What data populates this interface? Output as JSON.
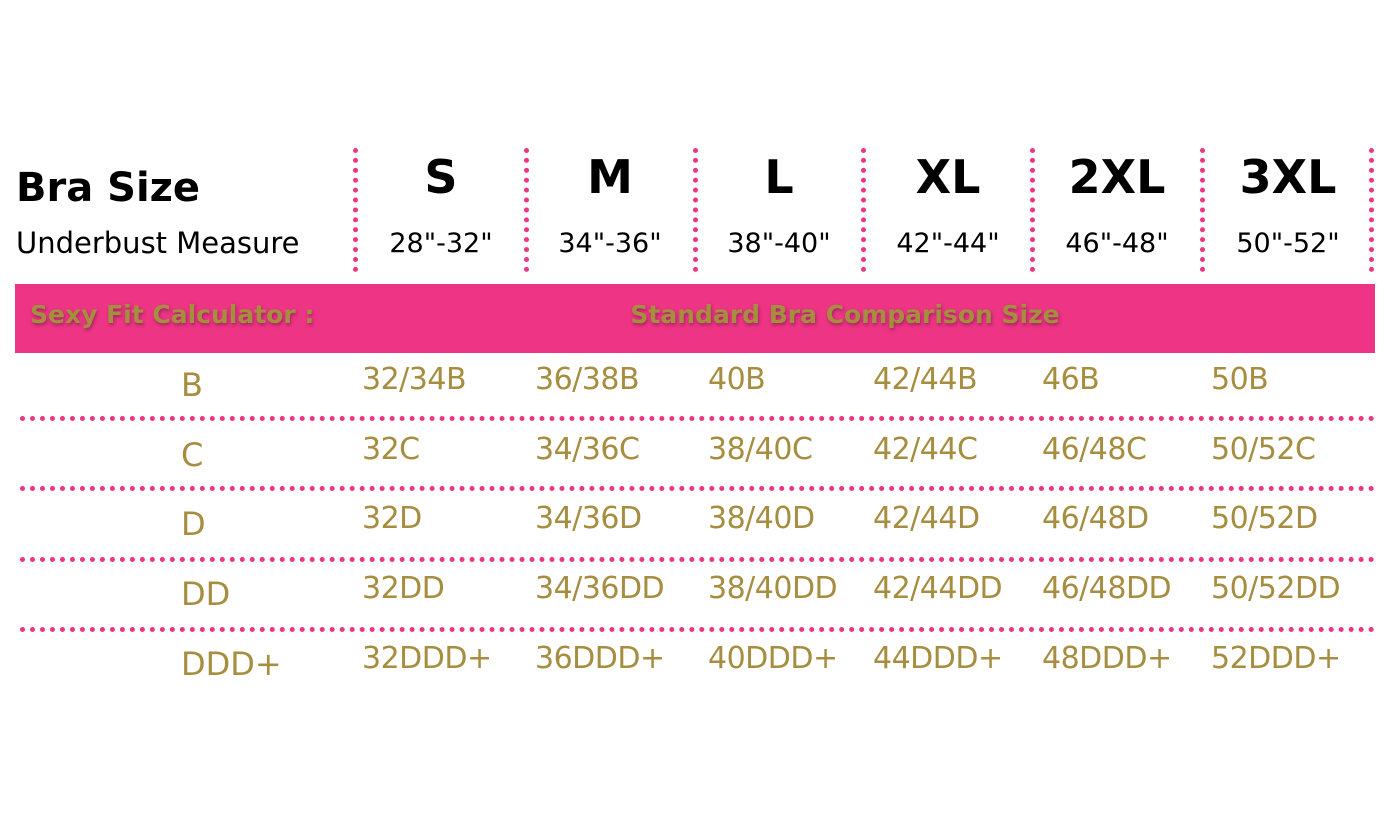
{
  "header": {
    "title": "Bra Size",
    "subtitle": "Underbust Measure"
  },
  "sizes": [
    {
      "label": "S",
      "measure": "28\"-32\""
    },
    {
      "label": "M",
      "measure": "34\"-36\""
    },
    {
      "label": "L",
      "measure": "38\"-40\""
    },
    {
      "label": "XL",
      "measure": "42\"-44\""
    },
    {
      "label": "2XL",
      "measure": "46\"-48\""
    },
    {
      "label": "3XL",
      "measure": "50\"-52\""
    }
  ],
  "banner": {
    "left": "Sexy Fit Calculator :",
    "right": "Standard Bra Comparison Size"
  },
  "rows": [
    {
      "cup": "B",
      "values": [
        "32/34B",
        "36/38B",
        "40B",
        "42/44B",
        "46B",
        "50B"
      ]
    },
    {
      "cup": "C",
      "values": [
        "32C",
        "34/36C",
        "38/40C",
        "42/44C",
        "46/48C",
        "50/52C"
      ]
    },
    {
      "cup": "D",
      "values": [
        "32D",
        "34/36D",
        "38/40D",
        "42/44D",
        "46/48D",
        "50/52D"
      ]
    },
    {
      "cup": "DD",
      "values": [
        "32DD",
        "34/36DD",
        "38/40DD",
        "42/44DD",
        "46/48DD",
        "50/52DD"
      ]
    },
    {
      "cup": "DDD+",
      "values": [
        "32DDD+",
        "36DDD+",
        "40DDD+",
        "44DDD+",
        "48DDD+",
        "52DDD+"
      ]
    }
  ],
  "colors": {
    "accent": "#ee3484",
    "text_gold": "#a68d3f"
  }
}
